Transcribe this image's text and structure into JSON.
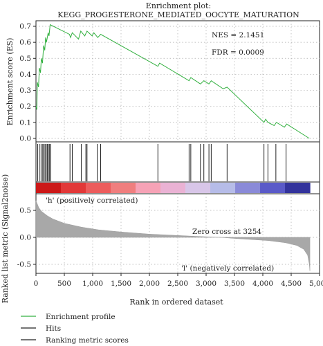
{
  "chart_data": {
    "type": "line",
    "title": "Enrichment plot:",
    "subtitle": "KEGG_PROGESTERONE_MEDIATED_OOCYTE_MATURATION",
    "annotations": {
      "nes": "NES = 2.1451",
      "fdr": "FDR = 0.0009",
      "zero_cross": "Zero cross at 3254"
    },
    "xlabel": "Rank in ordered dataset",
    "xlim": [
      0,
      5000
    ],
    "xticks": [
      "0",
      "500",
      "1,000",
      "1,500",
      "2,000",
      "2,500",
      "3,000",
      "3,500",
      "4,000",
      "4,500",
      "5,000"
    ],
    "grid": true,
    "legend_position": "bottom-left",
    "enrichment": {
      "ylabel": "Enrichment score (ES)",
      "ylim": [
        0,
        0.75
      ],
      "yticks": [
        "0.0",
        "0.1",
        "0.2",
        "0.3",
        "0.4",
        "0.5",
        "0.6",
        "0.7"
      ],
      "color": "#33b040",
      "points": [
        [
          0,
          0.2
        ],
        [
          15,
          0.18
        ],
        [
          25,
          0.35
        ],
        [
          45,
          0.32
        ],
        [
          60,
          0.44
        ],
        [
          80,
          0.41
        ],
        [
          95,
          0.5
        ],
        [
          115,
          0.47
        ],
        [
          135,
          0.58
        ],
        [
          155,
          0.55
        ],
        [
          170,
          0.63
        ],
        [
          185,
          0.6
        ],
        [
          215,
          0.66
        ],
        [
          230,
          0.64
        ],
        [
          250,
          0.71
        ],
        [
          590,
          0.65
        ],
        [
          610,
          0.63
        ],
        [
          640,
          0.66
        ],
        [
          750,
          0.62
        ],
        [
          790,
          0.67
        ],
        [
          860,
          0.64
        ],
        [
          900,
          0.67
        ],
        [
          990,
          0.64
        ],
        [
          1020,
          0.66
        ],
        [
          1090,
          0.63
        ],
        [
          1140,
          0.65
        ],
        [
          2150,
          0.45
        ],
        [
          2180,
          0.47
        ],
        [
          2700,
          0.36
        ],
        [
          2730,
          0.38
        ],
        [
          2900,
          0.34
        ],
        [
          2960,
          0.36
        ],
        [
          3050,
          0.34
        ],
        [
          3090,
          0.36
        ],
        [
          3300,
          0.31
        ],
        [
          3370,
          0.32
        ],
        [
          4020,
          0.1
        ],
        [
          4050,
          0.12
        ],
        [
          4090,
          0.1
        ],
        [
          4200,
          0.08
        ],
        [
          4240,
          0.1
        ],
        [
          4380,
          0.07
        ],
        [
          4420,
          0.09
        ],
        [
          4820,
          0.0
        ]
      ]
    },
    "hits": [
      30,
      60,
      90,
      120,
      140,
      160,
      180,
      200,
      220,
      240,
      260,
      600,
      640,
      800,
      880,
      900,
      1080,
      1140,
      2150,
      2700,
      2730,
      2900,
      2960,
      3050,
      3090,
      3370,
      4020,
      4090,
      4230,
      4410
    ],
    "ranked_metric": {
      "ylabel": "Ranked list metric (Signal2noise)",
      "ylim": [
        -0.7,
        0.75
      ],
      "yticks": [
        "0.5",
        "0.0",
        "-0.5"
      ],
      "color": "#a8a8a8",
      "points": [
        [
          0,
          0.68
        ],
        [
          50,
          0.55
        ],
        [
          100,
          0.48
        ],
        [
          200,
          0.4
        ],
        [
          300,
          0.34
        ],
        [
          500,
          0.26
        ],
        [
          800,
          0.19
        ],
        [
          1100,
          0.14
        ],
        [
          1500,
          0.1
        ],
        [
          2000,
          0.06
        ],
        [
          2500,
          0.035
        ],
        [
          2800,
          0.02
        ],
        [
          3254,
          0.0
        ],
        [
          3500,
          -0.02
        ],
        [
          3800,
          -0.04
        ],
        [
          4100,
          -0.06
        ],
        [
          4400,
          -0.1
        ],
        [
          4600,
          -0.15
        ],
        [
          4720,
          -0.22
        ],
        [
          4790,
          -0.33
        ],
        [
          4820,
          -0.5
        ],
        [
          4830,
          -0.62
        ],
        [
          4830,
          0.0
        ]
      ],
      "positive_label": "'h' (positively correlated)",
      "negative_label": "'l' (negatively correlated)",
      "positive_color": "#d82020",
      "negative_color": "#1f3fb0"
    },
    "heat_bar": {
      "colors": [
        "#cc1818",
        "#e23838",
        "#ec5c5c",
        "#f07e7e",
        "#f6a2b6",
        "#eab2d4",
        "#d8c6e8",
        "#b6bce8",
        "#8a8ad8",
        "#5a5ac8",
        "#33339c"
      ]
    },
    "legend": [
      {
        "label": "Enrichment profile",
        "color": "#33b040"
      },
      {
        "label": "Hits",
        "color": "#222222"
      },
      {
        "label": "Ranking metric scores",
        "color": "#222222"
      }
    ]
  }
}
